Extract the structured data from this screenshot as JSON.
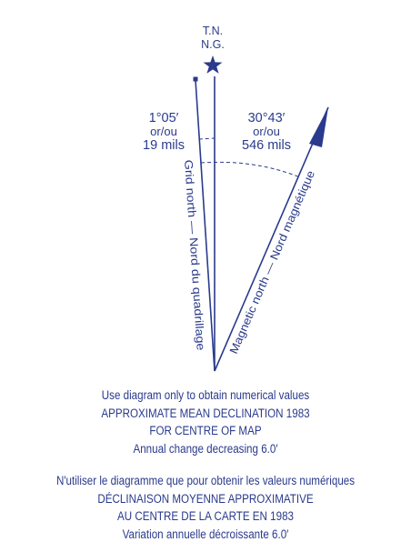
{
  "diagram": {
    "true_north_label": [
      "T.N.",
      "N.G."
    ],
    "grid_angle": [
      "1°05′",
      "or/ou",
      "19 mils"
    ],
    "magnetic_angle": [
      "30°43′",
      "or/ou",
      "546 mils"
    ],
    "grid_north_label": "Grid north — Nord du quadrillage",
    "magnetic_north_label": "Magnetic north — Nord magnétique",
    "declination_degrees": 30.72,
    "grid_convergence_degrees": 1.08
  },
  "caption_en": {
    "line1": "Use diagram only to obtain numerical values",
    "line2": "APPROXIMATE MEAN DECLINATION 1983",
    "line3": "FOR CENTRE OF MAP",
    "line4": "Annual change decreasing 6.0′"
  },
  "caption_fr": {
    "line1": "N'utiliser le diagramme que pour obtenir les valeurs numériques",
    "line2": "DÉCLINAISON MOYENNE APPROXIMATIVE",
    "line3": "AU CENTRE DE LA CARTE EN 1983",
    "line4": "Variation annuelle décroissante 6.0′"
  },
  "colors": {
    "ink": "#2a3a8c"
  }
}
